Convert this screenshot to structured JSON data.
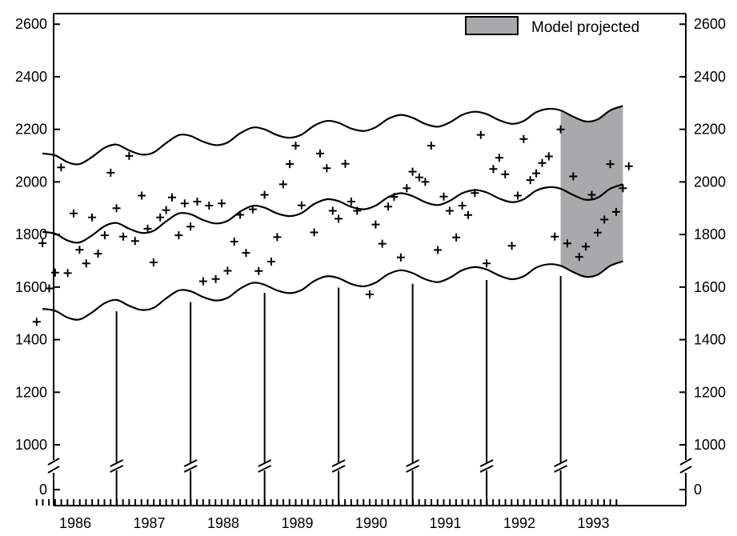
{
  "chart_data": {
    "type": "line",
    "title": "",
    "xlabel": "",
    "ylabel": "",
    "x_ticks": [
      "1986",
      "1987",
      "1988",
      "1989",
      "1990",
      "1991",
      "1992",
      "1993"
    ],
    "y_ticks": [
      {
        "value": 0,
        "label": "0"
      },
      {
        "value": 1000,
        "label": "1000"
      },
      {
        "value": 1200,
        "label": "1200"
      },
      {
        "value": 1400,
        "label": "1400"
      },
      {
        "value": 1600,
        "label": "1600"
      },
      {
        "value": 1800,
        "label": "1800"
      },
      {
        "value": 2000,
        "label": "2000"
      },
      {
        "value": 2200,
        "label": "2200"
      },
      {
        "value": 2400,
        "label": "2400"
      },
      {
        "value": 2600,
        "label": "2600"
      }
    ],
    "xlim": [
      1985.5,
      1993.8
    ],
    "ylim": [
      940,
      2640
    ],
    "axis_break": "between 0 and 1000 on both y axes and on each yearly tick",
    "legend": {
      "label": "Model projected",
      "position": "top-right",
      "color": "#a9a9ab"
    },
    "projection_band": {
      "x_start": 1992.58,
      "x_end": 1993.5
    },
    "band_curves": {
      "upper": [
        [
          1985.58,
          2108
        ],
        [
          1985.75,
          2101
        ],
        [
          1985.92,
          2075
        ],
        [
          1986.08,
          2068
        ],
        [
          1986.25,
          2095
        ],
        [
          1986.42,
          2130
        ],
        [
          1986.58,
          2142
        ],
        [
          1986.75,
          2120
        ],
        [
          1986.92,
          2104
        ],
        [
          1987.08,
          2112
        ],
        [
          1987.25,
          2148
        ],
        [
          1987.42,
          2178
        ],
        [
          1987.58,
          2175
        ],
        [
          1987.75,
          2153
        ],
        [
          1987.92,
          2140
        ],
        [
          1988.08,
          2150
        ],
        [
          1988.25,
          2185
        ],
        [
          1988.42,
          2207
        ],
        [
          1988.58,
          2200
        ],
        [
          1988.75,
          2178
        ],
        [
          1988.92,
          2168
        ],
        [
          1989.08,
          2180
        ],
        [
          1989.25,
          2214
        ],
        [
          1989.42,
          2232
        ],
        [
          1989.58,
          2225
        ],
        [
          1989.75,
          2203
        ],
        [
          1989.92,
          2194
        ],
        [
          1990.08,
          2208
        ],
        [
          1990.25,
          2240
        ],
        [
          1990.42,
          2255
        ],
        [
          1990.58,
          2244
        ],
        [
          1990.75,
          2221
        ],
        [
          1990.92,
          2210
        ],
        [
          1991.08,
          2226
        ],
        [
          1991.25,
          2255
        ],
        [
          1991.42,
          2267
        ],
        [
          1991.58,
          2258
        ],
        [
          1991.75,
          2235
        ],
        [
          1991.92,
          2221
        ],
        [
          1992.08,
          2232
        ],
        [
          1992.25,
          2265
        ],
        [
          1992.42,
          2278
        ],
        [
          1992.58,
          2272
        ],
        [
          1992.75,
          2248
        ],
        [
          1992.92,
          2230
        ],
        [
          1993.08,
          2238
        ],
        [
          1993.25,
          2272
        ],
        [
          1993.42,
          2289
        ]
      ],
      "middle": [
        [
          1985.58,
          1810
        ],
        [
          1985.75,
          1803
        ],
        [
          1985.92,
          1777
        ],
        [
          1986.08,
          1770
        ],
        [
          1986.25,
          1797
        ],
        [
          1986.42,
          1832
        ],
        [
          1986.58,
          1844
        ],
        [
          1986.75,
          1822
        ],
        [
          1986.92,
          1806
        ],
        [
          1987.08,
          1814
        ],
        [
          1987.25,
          1850
        ],
        [
          1987.42,
          1880
        ],
        [
          1987.58,
          1877
        ],
        [
          1987.75,
          1855
        ],
        [
          1987.92,
          1842
        ],
        [
          1988.08,
          1852
        ],
        [
          1988.25,
          1887
        ],
        [
          1988.42,
          1909
        ],
        [
          1988.58,
          1902
        ],
        [
          1988.75,
          1880
        ],
        [
          1988.92,
          1870
        ],
        [
          1989.08,
          1882
        ],
        [
          1989.25,
          1916
        ],
        [
          1989.42,
          1934
        ],
        [
          1989.58,
          1927
        ],
        [
          1989.75,
          1905
        ],
        [
          1989.92,
          1896
        ],
        [
          1990.08,
          1910
        ],
        [
          1990.25,
          1942
        ],
        [
          1990.42,
          1957
        ],
        [
          1990.58,
          1946
        ],
        [
          1990.75,
          1923
        ],
        [
          1990.92,
          1912
        ],
        [
          1991.08,
          1928
        ],
        [
          1991.25,
          1957
        ],
        [
          1991.42,
          1969
        ],
        [
          1991.58,
          1960
        ],
        [
          1991.75,
          1937
        ],
        [
          1991.92,
          1923
        ],
        [
          1992.08,
          1934
        ],
        [
          1992.25,
          1967
        ],
        [
          1992.42,
          1980
        ],
        [
          1992.58,
          1974
        ],
        [
          1992.75,
          1950
        ],
        [
          1992.92,
          1932
        ],
        [
          1993.08,
          1940
        ],
        [
          1993.25,
          1974
        ],
        [
          1993.42,
          1991
        ]
      ],
      "lower": [
        [
          1985.58,
          1517
        ],
        [
          1985.75,
          1510
        ],
        [
          1985.92,
          1484
        ],
        [
          1986.08,
          1477
        ],
        [
          1986.25,
          1504
        ],
        [
          1986.42,
          1539
        ],
        [
          1986.58,
          1551
        ],
        [
          1986.75,
          1529
        ],
        [
          1986.92,
          1513
        ],
        [
          1987.08,
          1521
        ],
        [
          1987.25,
          1557
        ],
        [
          1987.42,
          1587
        ],
        [
          1987.58,
          1584
        ],
        [
          1987.75,
          1562
        ],
        [
          1987.92,
          1549
        ],
        [
          1988.08,
          1559
        ],
        [
          1988.25,
          1594
        ],
        [
          1988.42,
          1616
        ],
        [
          1988.58,
          1609
        ],
        [
          1988.75,
          1587
        ],
        [
          1988.92,
          1577
        ],
        [
          1989.08,
          1589
        ],
        [
          1989.25,
          1623
        ],
        [
          1989.42,
          1641
        ],
        [
          1989.58,
          1634
        ],
        [
          1989.75,
          1612
        ],
        [
          1989.92,
          1603
        ],
        [
          1990.08,
          1617
        ],
        [
          1990.25,
          1649
        ],
        [
          1990.42,
          1664
        ],
        [
          1990.58,
          1653
        ],
        [
          1990.75,
          1630
        ],
        [
          1990.92,
          1619
        ],
        [
          1991.08,
          1635
        ],
        [
          1991.25,
          1664
        ],
        [
          1991.42,
          1676
        ],
        [
          1991.58,
          1667
        ],
        [
          1991.75,
          1644
        ],
        [
          1991.92,
          1630
        ],
        [
          1992.08,
          1641
        ],
        [
          1992.25,
          1674
        ],
        [
          1992.42,
          1687
        ],
        [
          1992.58,
          1681
        ],
        [
          1992.75,
          1657
        ],
        [
          1992.92,
          1639
        ],
        [
          1993.08,
          1647
        ],
        [
          1993.25,
          1681
        ],
        [
          1993.42,
          1698
        ]
      ]
    },
    "year_markers": [
      {
        "x": 1986.58,
        "y_top": 1508
      },
      {
        "x": 1987.58,
        "y_top": 1543
      },
      {
        "x": 1988.58,
        "y_top": 1578
      },
      {
        "x": 1989.58,
        "y_top": 1598
      },
      {
        "x": 1990.58,
        "y_top": 1613
      },
      {
        "x": 1991.58,
        "y_top": 1627
      },
      {
        "x": 1992.58,
        "y_top": 1642
      }
    ],
    "series": [
      {
        "points": [
          [
            1985.5,
            1468
          ],
          [
            1985.58,
            1767
          ],
          [
            1985.67,
            1595
          ],
          [
            1985.75,
            1655
          ],
          [
            1985.83,
            2055
          ],
          [
            1985.92,
            1653
          ],
          [
            1986.0,
            1880
          ],
          [
            1986.08,
            1742
          ],
          [
            1986.17,
            1690
          ],
          [
            1986.25,
            1865
          ],
          [
            1986.33,
            1727
          ],
          [
            1986.42,
            1797
          ],
          [
            1986.5,
            2035
          ],
          [
            1986.58,
            1900
          ],
          [
            1986.67,
            1792
          ],
          [
            1986.75,
            2099
          ],
          [
            1986.83,
            1775
          ],
          [
            1986.92,
            1948
          ],
          [
            1987.0,
            1822
          ],
          [
            1987.08,
            1694
          ],
          [
            1987.17,
            1865
          ],
          [
            1987.25,
            1893
          ],
          [
            1987.33,
            1941
          ],
          [
            1987.42,
            1797
          ],
          [
            1987.5,
            1918
          ],
          [
            1987.58,
            1830
          ],
          [
            1987.67,
            1925
          ],
          [
            1987.75,
            1622
          ],
          [
            1987.83,
            1910
          ],
          [
            1987.92,
            1631
          ],
          [
            1988.0,
            1918
          ],
          [
            1988.08,
            1662
          ],
          [
            1988.17,
            1773
          ],
          [
            1988.25,
            1875
          ],
          [
            1988.33,
            1730
          ],
          [
            1988.42,
            1896
          ],
          [
            1988.5,
            1661
          ],
          [
            1988.58,
            1951
          ],
          [
            1988.67,
            1697
          ],
          [
            1988.75,
            1790
          ],
          [
            1988.83,
            1991
          ],
          [
            1988.92,
            2068
          ],
          [
            1989.0,
            2138
          ],
          [
            1989.08,
            1911
          ],
          [
            1989.25,
            1808
          ],
          [
            1989.33,
            2108
          ],
          [
            1989.42,
            2052
          ],
          [
            1989.5,
            1890
          ],
          [
            1989.58,
            1860
          ],
          [
            1989.67,
            2069
          ],
          [
            1989.75,
            1925
          ],
          [
            1989.83,
            1890
          ],
          [
            1990.0,
            1572
          ],
          [
            1990.08,
            1838
          ],
          [
            1990.17,
            1765
          ],
          [
            1990.25,
            1906
          ],
          [
            1990.33,
            1943
          ],
          [
            1990.42,
            1713
          ],
          [
            1990.5,
            1976
          ],
          [
            1990.58,
            2039
          ],
          [
            1990.67,
            2017
          ],
          [
            1990.75,
            2000
          ],
          [
            1990.83,
            2138
          ],
          [
            1990.92,
            1741
          ],
          [
            1991.0,
            1944
          ],
          [
            1991.08,
            1890
          ],
          [
            1991.17,
            1789
          ],
          [
            1991.25,
            1910
          ],
          [
            1991.33,
            1874
          ],
          [
            1991.42,
            1958
          ],
          [
            1991.5,
            2179
          ],
          [
            1991.58,
            1690
          ],
          [
            1991.67,
            2049
          ],
          [
            1991.75,
            2092
          ],
          [
            1991.83,
            2029
          ],
          [
            1991.92,
            1757
          ],
          [
            1992.0,
            1948
          ],
          [
            1992.08,
            2163
          ],
          [
            1992.17,
            2007
          ],
          [
            1992.25,
            2033
          ],
          [
            1992.33,
            2072
          ],
          [
            1992.42,
            2097
          ],
          [
            1992.5,
            1792
          ],
          [
            1992.58,
            2200
          ],
          [
            1992.67,
            1766
          ],
          [
            1992.75,
            2021
          ],
          [
            1992.83,
            1715
          ],
          [
            1992.92,
            1754
          ],
          [
            1993.0,
            1951
          ],
          [
            1993.08,
            1807
          ],
          [
            1993.17,
            1857
          ],
          [
            1993.25,
            2068
          ],
          [
            1993.33,
            1886
          ],
          [
            1993.42,
            1976
          ],
          [
            1993.5,
            2060
          ]
        ]
      }
    ]
  }
}
